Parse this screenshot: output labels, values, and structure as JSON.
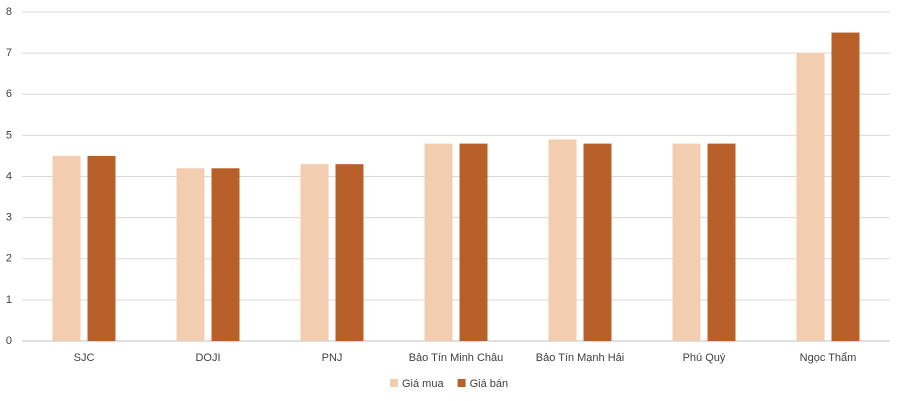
{
  "chart_data": {
    "type": "bar",
    "categories": [
      "SJC",
      "DOJI",
      "PNJ",
      "Bảo Tín Minh Châu",
      "Bảo Tín Mạnh Hải",
      "Phú Quý",
      "Ngọc Thẩm"
    ],
    "series": [
      {
        "name": "Giá mua",
        "color": "#f2cdb0",
        "values": [
          4.5,
          4.2,
          4.3,
          4.8,
          4.9,
          4.8,
          7.0
        ]
      },
      {
        "name": "Giá bán",
        "color": "#b8602a",
        "values": [
          4.5,
          4.2,
          4.3,
          4.8,
          4.8,
          4.8,
          7.5
        ]
      }
    ],
    "ylim": [
      0,
      8
    ],
    "yticks": [
      0,
      1,
      2,
      3,
      4,
      5,
      6,
      7,
      8
    ],
    "grid": true,
    "legend": "bottom"
  }
}
